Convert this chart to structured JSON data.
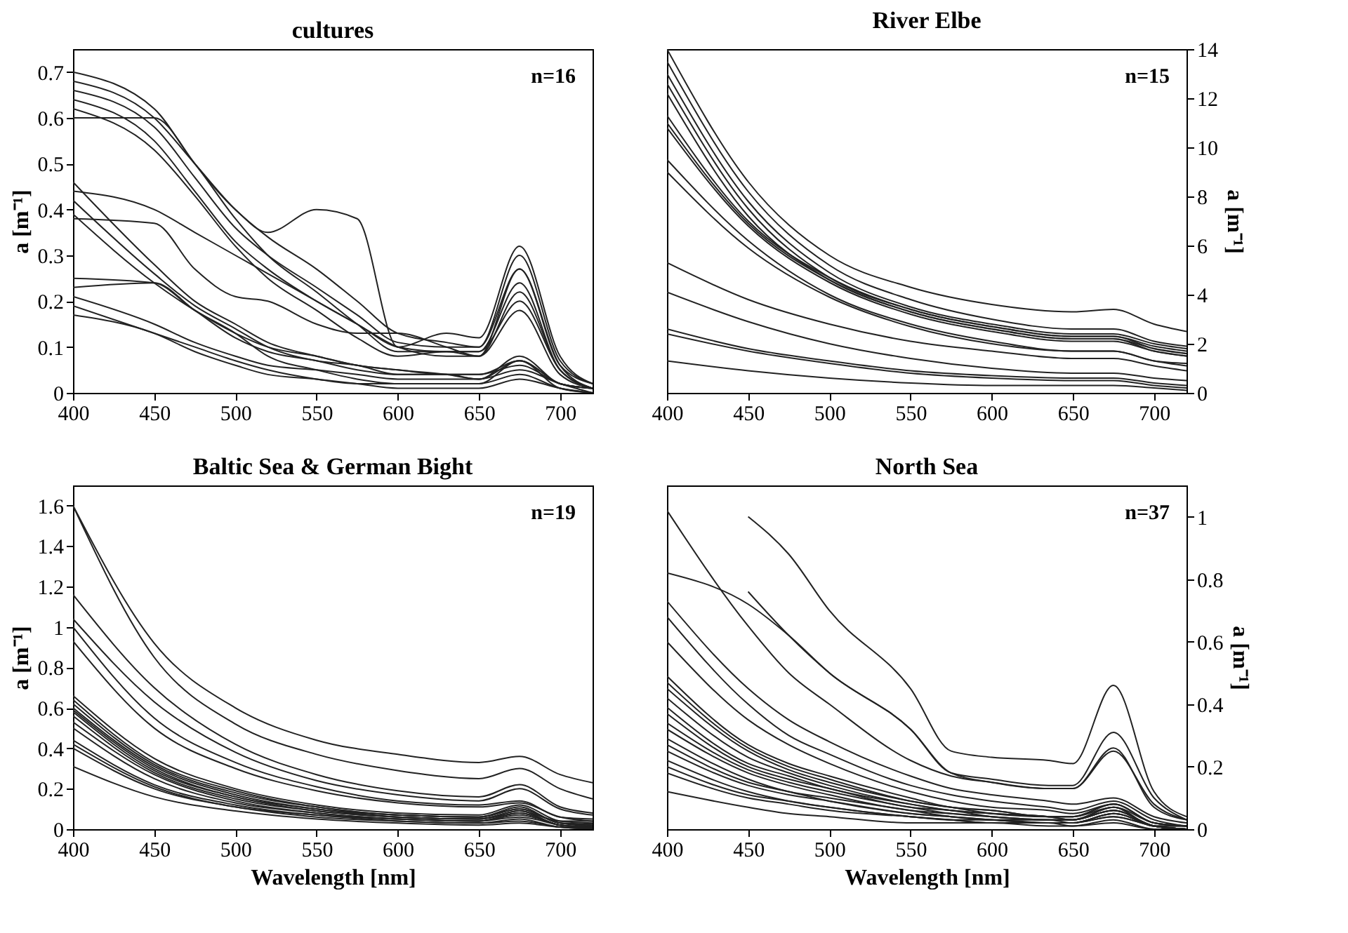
{
  "chart_data": [
    {
      "type": "line",
      "title": "cultures",
      "ylabel": "a [m⁻¹]",
      "annotations": [
        "n=16"
      ],
      "grid": false,
      "legend": false,
      "marker": "none",
      "line_style": "solid",
      "xlim": [
        400,
        720
      ],
      "xticks": [
        400,
        450,
        500,
        550,
        600,
        650,
        700
      ],
      "ylim": [
        0,
        0.75
      ],
      "yticks": [
        0,
        0.1,
        0.2,
        0.3,
        0.4,
        0.5,
        0.6,
        0.7
      ],
      "x": [
        400,
        450,
        475,
        500,
        520,
        550,
        575,
        600,
        630,
        650,
        675,
        700,
        720
      ],
      "series": [
        {
          "color": "#222222",
          "values": [
            0.7,
            0.62,
            0.5,
            0.4,
            0.35,
            0.4,
            0.38,
            0.1,
            0.13,
            0.12,
            0.32,
            0.08,
            0.02
          ]
        },
        {
          "color": "#222222",
          "values": [
            0.68,
            0.6,
            0.5,
            0.4,
            0.34,
            0.27,
            0.2,
            0.13,
            0.11,
            0.1,
            0.3,
            0.07,
            0.02
          ]
        },
        {
          "color": "#222222",
          "values": [
            0.66,
            0.58,
            0.47,
            0.36,
            0.3,
            0.23,
            0.17,
            0.11,
            0.1,
            0.1,
            0.27,
            0.06,
            0.02
          ]
        },
        {
          "color": "#222222",
          "values": [
            0.64,
            0.55,
            0.44,
            0.33,
            0.27,
            0.2,
            0.15,
            0.1,
            0.09,
            0.09,
            0.24,
            0.05,
            0.01
          ]
        },
        {
          "color": "#222222",
          "values": [
            0.6,
            0.6,
            0.5,
            0.38,
            0.3,
            0.22,
            0.15,
            0.09,
            0.09,
            0.09,
            0.2,
            0.05,
            0.01
          ]
        },
        {
          "color": "#222222",
          "values": [
            0.62,
            0.53,
            0.43,
            0.32,
            0.25,
            0.18,
            0.12,
            0.08,
            0.09,
            0.08,
            0.27,
            0.06,
            0.01
          ]
        },
        {
          "color": "#222222",
          "values": [
            0.44,
            0.4,
            0.35,
            0.3,
            0.26,
            0.2,
            0.15,
            0.1,
            0.08,
            0.08,
            0.22,
            0.05,
            0.01
          ]
        },
        {
          "color": "#222222",
          "values": [
            0.38,
            0.37,
            0.27,
            0.21,
            0.2,
            0.15,
            0.13,
            0.13,
            0.1,
            0.08,
            0.18,
            0.04,
            0.01
          ]
        },
        {
          "color": "#222222",
          "values": [
            0.46,
            0.28,
            0.2,
            0.15,
            0.11,
            0.08,
            0.06,
            0.05,
            0.04,
            0.03,
            0.08,
            0.02,
            0.01
          ]
        },
        {
          "color": "#222222",
          "values": [
            0.42,
            0.26,
            0.19,
            0.14,
            0.1,
            0.07,
            0.06,
            0.04,
            0.04,
            0.03,
            0.07,
            0.02,
            0.01
          ]
        },
        {
          "color": "#222222",
          "values": [
            0.39,
            0.24,
            0.18,
            0.13,
            0.08,
            0.05,
            0.03,
            0.02,
            0.02,
            0.02,
            0.07,
            0.01,
            0.0
          ]
        },
        {
          "color": "#222222",
          "values": [
            0.25,
            0.24,
            0.18,
            0.13,
            0.1,
            0.08,
            0.06,
            0.05,
            0.04,
            0.04,
            0.07,
            0.02,
            0.01
          ]
        },
        {
          "color": "#222222",
          "values": [
            0.23,
            0.24,
            0.18,
            0.12,
            0.09,
            0.07,
            0.05,
            0.04,
            0.04,
            0.04,
            0.06,
            0.02,
            0.01
          ]
        },
        {
          "color": "#222222",
          "values": [
            0.21,
            0.15,
            0.11,
            0.08,
            0.06,
            0.05,
            0.04,
            0.03,
            0.03,
            0.03,
            0.05,
            0.02,
            0.0
          ]
        },
        {
          "color": "#222222",
          "values": [
            0.19,
            0.13,
            0.1,
            0.07,
            0.05,
            0.03,
            0.02,
            0.02,
            0.02,
            0.02,
            0.04,
            0.01,
            0.0
          ]
        },
        {
          "color": "#222222",
          "values": [
            0.17,
            0.13,
            0.09,
            0.06,
            0.04,
            0.03,
            0.02,
            0.01,
            0.01,
            0.01,
            0.03,
            0.01,
            0.0
          ]
        }
      ]
    },
    {
      "type": "line",
      "title": "River Elbe",
      "y2label": "a [m⁻¹]",
      "annotations": [
        "n=15"
      ],
      "grid": false,
      "legend": false,
      "marker": "none",
      "line_style": "solid",
      "xlim": [
        400,
        720
      ],
      "xticks": [
        400,
        450,
        500,
        550,
        600,
        650,
        700
      ],
      "y2lim": [
        0,
        14
      ],
      "y2ticks": [
        0,
        2,
        4,
        6,
        8,
        10,
        12,
        14
      ],
      "x": [
        400,
        450,
        500,
        550,
        600,
        650,
        675,
        700,
        720
      ],
      "series": [
        {
          "axis": "y2",
          "color": "#222222",
          "values": [
            14,
            8.6,
            5.6,
            4.3,
            3.6,
            3.3,
            3.4,
            2.8,
            2.5
          ]
        },
        {
          "axis": "y2",
          "color": "#222222",
          "values": [
            13.5,
            8.2,
            5.2,
            3.8,
            3.0,
            2.6,
            2.6,
            2.1,
            1.9
          ]
        },
        {
          "axis": "y2",
          "color": "#222222",
          "values": [
            13.0,
            7.8,
            4.9,
            3.5,
            2.8,
            2.4,
            2.4,
            2.0,
            1.8
          ]
        },
        {
          "axis": "y2",
          "color": "#222222",
          "values": [
            12.6,
            7.5,
            4.7,
            3.4,
            2.7,
            2.3,
            2.3,
            1.9,
            1.7
          ]
        },
        {
          "axis": "y2",
          "color": "#222222",
          "values": [
            12.2,
            7.2,
            4.6,
            3.3,
            2.6,
            2.2,
            2.2,
            1.8,
            1.6
          ]
        },
        {
          "axis": "y2",
          "color": "#222222",
          "values": [
            11.3,
            7.0,
            4.7,
            3.4,
            2.7,
            2.3,
            2.3,
            1.8,
            1.6
          ]
        },
        {
          "axis": "y2",
          "color": "#222222",
          "values": [
            11.0,
            6.9,
            4.6,
            3.3,
            2.6,
            2.2,
            2.2,
            1.7,
            1.5
          ]
        },
        {
          "axis": "y2",
          "color": "#222222",
          "values": [
            10.8,
            6.8,
            4.5,
            3.2,
            2.5,
            2.1,
            2.1,
            1.7,
            1.5
          ]
        },
        {
          "axis": "y2",
          "color": "#222222",
          "values": [
            9.5,
            6.2,
            4.0,
            2.8,
            2.1,
            1.7,
            1.7,
            1.3,
            1.1
          ]
        },
        {
          "axis": "y2",
          "color": "#222222",
          "values": [
            9.0,
            5.9,
            3.9,
            2.7,
            2.0,
            1.7,
            1.7,
            1.3,
            1.2
          ]
        },
        {
          "axis": "y2",
          "color": "#222222",
          "values": [
            5.3,
            3.8,
            2.8,
            2.1,
            1.7,
            1.4,
            1.4,
            1.1,
            0.9
          ]
        },
        {
          "axis": "y2",
          "color": "#222222",
          "values": [
            4.1,
            2.9,
            2.0,
            1.4,
            1.0,
            0.8,
            0.8,
            0.6,
            0.5
          ]
        },
        {
          "axis": "y2",
          "color": "#222222",
          "values": [
            2.6,
            1.8,
            1.3,
            0.9,
            0.7,
            0.6,
            0.6,
            0.4,
            0.3
          ]
        },
        {
          "axis": "y2",
          "color": "#222222",
          "values": [
            2.4,
            1.7,
            1.2,
            0.8,
            0.6,
            0.5,
            0.5,
            0.3,
            0.2
          ]
        },
        {
          "axis": "y2",
          "color": "#222222",
          "values": [
            1.3,
            0.9,
            0.6,
            0.4,
            0.3,
            0.3,
            0.3,
            0.2,
            0.1
          ]
        }
      ]
    },
    {
      "type": "line",
      "title": "Baltic Sea & German Bight",
      "xlabel": "Wavelength [nm]",
      "ylabel": "a [m⁻¹]",
      "annotations": [
        "n=19"
      ],
      "grid": false,
      "legend": false,
      "marker": "none",
      "line_style": "solid",
      "xlim": [
        400,
        720
      ],
      "xticks": [
        400,
        450,
        500,
        550,
        600,
        650,
        700
      ],
      "ylim": [
        0,
        1.7
      ],
      "yticks": [
        0,
        0.2,
        0.4,
        0.6,
        0.8,
        1,
        1.2,
        1.4,
        1.6
      ],
      "x": [
        400,
        450,
        500,
        550,
        600,
        650,
        675,
        700,
        720
      ],
      "series": [
        {
          "color": "#222222",
          "values": [
            1.6,
            0.92,
            0.6,
            0.44,
            0.37,
            0.33,
            0.36,
            0.27,
            0.23
          ]
        },
        {
          "color": "#222222",
          "values": [
            1.6,
            0.85,
            0.52,
            0.37,
            0.29,
            0.25,
            0.3,
            0.2,
            0.15
          ]
        },
        {
          "color": "#222222",
          "values": [
            1.16,
            0.7,
            0.42,
            0.27,
            0.19,
            0.16,
            0.22,
            0.11,
            0.08
          ]
        },
        {
          "color": "#222222",
          "values": [
            1.04,
            0.63,
            0.38,
            0.24,
            0.17,
            0.14,
            0.2,
            0.1,
            0.07
          ]
        },
        {
          "color": "#222222",
          "values": [
            1.0,
            0.55,
            0.33,
            0.21,
            0.14,
            0.12,
            0.14,
            0.06,
            0.05
          ]
        },
        {
          "color": "#222222",
          "values": [
            0.93,
            0.5,
            0.3,
            0.19,
            0.13,
            0.11,
            0.13,
            0.06,
            0.04
          ]
        },
        {
          "color": "#222222",
          "values": [
            0.66,
            0.35,
            0.2,
            0.12,
            0.08,
            0.07,
            0.12,
            0.04,
            0.03
          ]
        },
        {
          "color": "#222222",
          "values": [
            0.64,
            0.33,
            0.19,
            0.11,
            0.07,
            0.06,
            0.11,
            0.03,
            0.025
          ]
        },
        {
          "color": "#222222",
          "values": [
            0.62,
            0.32,
            0.18,
            0.11,
            0.07,
            0.06,
            0.1,
            0.03,
            0.02
          ]
        },
        {
          "color": "#222222",
          "values": [
            0.6,
            0.31,
            0.17,
            0.1,
            0.07,
            0.06,
            0.1,
            0.03,
            0.015
          ]
        },
        {
          "color": "#222222",
          "values": [
            0.59,
            0.3,
            0.16,
            0.1,
            0.06,
            0.05,
            0.09,
            0.04,
            0.04
          ]
        },
        {
          "color": "#222222",
          "values": [
            0.58,
            0.29,
            0.16,
            0.09,
            0.06,
            0.05,
            0.09,
            0.02,
            0.012
          ]
        },
        {
          "color": "#222222",
          "values": [
            0.56,
            0.28,
            0.15,
            0.09,
            0.06,
            0.05,
            0.08,
            0.02,
            0.01
          ]
        },
        {
          "color": "#222222",
          "values": [
            0.53,
            0.27,
            0.14,
            0.08,
            0.05,
            0.04,
            0.08,
            0.02,
            0.008
          ]
        },
        {
          "color": "#222222",
          "values": [
            0.5,
            0.25,
            0.13,
            0.08,
            0.05,
            0.04,
            0.07,
            0.02,
            0.006
          ]
        },
        {
          "color": "#222222",
          "values": [
            0.44,
            0.22,
            0.12,
            0.07,
            0.05,
            0.04,
            0.06,
            0.02,
            0.005
          ]
        },
        {
          "color": "#222222",
          "values": [
            0.42,
            0.21,
            0.11,
            0.07,
            0.04,
            0.03,
            0.05,
            0.01,
            0.003
          ]
        },
        {
          "color": "#222222",
          "values": [
            0.4,
            0.2,
            0.11,
            0.06,
            0.04,
            0.03,
            0.04,
            0.01,
            0.0
          ]
        },
        {
          "color": "#222222",
          "values": [
            0.31,
            0.16,
            0.09,
            0.05,
            0.03,
            0.02,
            0.03,
            0.01,
            0.0
          ]
        }
      ]
    },
    {
      "type": "line",
      "title": "North Sea",
      "xlabel": "Wavelength [nm]",
      "y2label": "a [m⁻¹]",
      "annotations": [
        "n=37"
      ],
      "grid": false,
      "legend": false,
      "marker": "none",
      "line_style": "solid",
      "xlim": [
        400,
        720
      ],
      "xticks": [
        400,
        450,
        500,
        550,
        600,
        650,
        700
      ],
      "y2lim": [
        0,
        1.1
      ],
      "y2ticks": [
        0,
        0.2,
        0.4,
        0.6,
        0.8,
        1
      ],
      "x": [
        400,
        450,
        475,
        500,
        550,
        575,
        600,
        635,
        650,
        675,
        700,
        720
      ],
      "series": [
        {
          "axis": "y2",
          "color": "#222222",
          "values": [
            null,
            1.0,
            0.88,
            0.7,
            0.45,
            0.25,
            0.23,
            0.22,
            0.21,
            0.46,
            0.12,
            0.04
          ]
        },
        {
          "axis": "y2",
          "color": "#222222",
          "values": [
            null,
            0.76,
            0.62,
            0.5,
            0.32,
            0.18,
            0.16,
            0.14,
            0.14,
            0.31,
            0.1,
            0.03
          ]
        },
        {
          "axis": "y2",
          "color": "#222222",
          "values": [
            0.82,
            0.72,
            0.62,
            0.5,
            0.32,
            0.18,
            0.15,
            0.13,
            0.13,
            0.25,
            0.08,
            0.03
          ]
        },
        {
          "axis": "y2",
          "color": "#222222",
          "values": [
            1.02,
            0.65,
            0.5,
            0.4,
            0.22,
            0.17,
            0.15,
            0.13,
            0.13,
            0.26,
            0.07,
            0.03
          ]
        },
        {
          "axis": "y2",
          "color": "#222222",
          "values": [
            0.73,
            0.45,
            0.35,
            0.28,
            0.17,
            0.13,
            0.11,
            0.09,
            0.08,
            0.1,
            0.04,
            0.02
          ]
        },
        {
          "axis": "y2",
          "color": "#222222",
          "values": [
            0.68,
            0.4,
            0.3,
            0.24,
            0.14,
            0.11,
            0.09,
            0.07,
            0.06,
            0.09,
            0.03,
            0.01
          ]
        },
        {
          "axis": "y2",
          "color": "#222222",
          "values": [
            0.6,
            0.35,
            0.27,
            0.21,
            0.12,
            0.09,
            0.07,
            0.06,
            0.05,
            0.08,
            0.02,
            0.01
          ]
        },
        {
          "axis": "y2",
          "color": "#222222",
          "values": [
            0.49,
            0.27,
            0.21,
            0.17,
            0.1,
            0.07,
            0.06,
            0.04,
            0.04,
            0.08,
            0.02,
            0.01
          ]
        },
        {
          "axis": "y2",
          "color": "#222222",
          "values": [
            0.47,
            0.26,
            0.2,
            0.16,
            0.09,
            0.07,
            0.06,
            0.04,
            0.04,
            0.08,
            0.02,
            0.01
          ]
        },
        {
          "axis": "y2",
          "color": "#222222",
          "values": [
            0.45,
            0.25,
            0.19,
            0.15,
            0.09,
            0.07,
            0.05,
            0.04,
            0.04,
            0.07,
            0.02,
            0.01
          ]
        },
        {
          "axis": "y2",
          "color": "#222222",
          "values": [
            0.42,
            0.23,
            0.18,
            0.14,
            0.08,
            0.06,
            0.05,
            0.04,
            0.03,
            0.07,
            0.01,
            0.01
          ]
        },
        {
          "axis": "y2",
          "color": "#222222",
          "values": [
            0.39,
            0.21,
            0.17,
            0.13,
            0.08,
            0.06,
            0.05,
            0.04,
            0.03,
            0.07,
            0.01,
            0.01
          ]
        },
        {
          "axis": "y2",
          "color": "#222222",
          "values": [
            0.37,
            0.2,
            0.16,
            0.13,
            0.07,
            0.06,
            0.04,
            0.03,
            0.03,
            0.06,
            0.01,
            0.0
          ]
        },
        {
          "axis": "y2",
          "color": "#222222",
          "values": [
            0.34,
            0.19,
            0.15,
            0.12,
            0.07,
            0.05,
            0.04,
            0.03,
            0.03,
            0.06,
            0.01,
            0.0
          ]
        },
        {
          "axis": "y2",
          "color": "#222222",
          "values": [
            0.32,
            0.18,
            0.14,
            0.11,
            0.06,
            0.05,
            0.04,
            0.03,
            0.03,
            0.06,
            0.01,
            0.0
          ]
        },
        {
          "axis": "y2",
          "color": "#222222",
          "values": [
            0.29,
            0.16,
            0.12,
            0.1,
            0.06,
            0.04,
            0.03,
            0.03,
            0.02,
            0.05,
            0.01,
            0.0
          ]
        },
        {
          "axis": "y2",
          "color": "#222222",
          "values": [
            0.27,
            0.15,
            0.12,
            0.09,
            0.05,
            0.04,
            0.03,
            0.02,
            0.02,
            0.05,
            0.01,
            0.0
          ]
        },
        {
          "axis": "y2",
          "color": "#222222",
          "values": [
            0.25,
            0.14,
            0.11,
            0.09,
            0.05,
            0.04,
            0.03,
            0.02,
            0.02,
            0.05,
            0.01,
            0.0
          ]
        },
        {
          "axis": "y2",
          "color": "#222222",
          "values": [
            0.22,
            0.12,
            0.09,
            0.07,
            0.04,
            0.03,
            0.03,
            0.02,
            0.02,
            0.04,
            0.01,
            0.0
          ]
        },
        {
          "axis": "y2",
          "color": "#222222",
          "values": [
            0.2,
            0.11,
            0.09,
            0.07,
            0.04,
            0.03,
            0.02,
            0.02,
            0.02,
            0.04,
            0.01,
            0.0
          ]
        },
        {
          "axis": "y2",
          "color": "#222222",
          "values": [
            0.18,
            0.1,
            0.08,
            0.06,
            0.04,
            0.03,
            0.02,
            0.02,
            0.01,
            0.03,
            0.0,
            0.0
          ]
        },
        {
          "axis": "y2",
          "color": "#222222",
          "values": [
            0.12,
            0.07,
            0.05,
            0.04,
            0.02,
            0.02,
            0.02,
            0.01,
            0.01,
            0.02,
            0.0,
            0.0
          ]
        }
      ]
    }
  ]
}
